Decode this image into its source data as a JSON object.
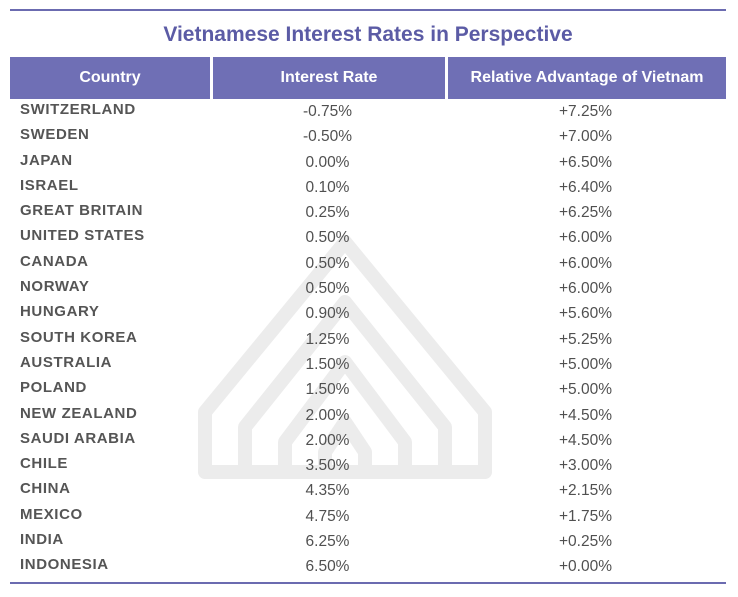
{
  "title": "Vietnamese Interest Rates in Perspective",
  "columns": {
    "country": "Country",
    "rate": "Interest Rate",
    "advantage": "Relative Advantage of Vietnam"
  },
  "rows": [
    {
      "country": "SWITZERLAND",
      "rate": "-0.75%",
      "advantage": "+7.25%"
    },
    {
      "country": "SWEDEN",
      "rate": "-0.50%",
      "advantage": "+7.00%"
    },
    {
      "country": "JAPAN",
      "rate": "0.00%",
      "advantage": "+6.50%"
    },
    {
      "country": "ISRAEL",
      "rate": "0.10%",
      "advantage": "+6.40%"
    },
    {
      "country": "GREAT BRITAIN",
      "rate": "0.25%",
      "advantage": "+6.25%"
    },
    {
      "country": "UNITED STATES",
      "rate": "0.50%",
      "advantage": "+6.00%"
    },
    {
      "country": "CANADA",
      "rate": "0.50%",
      "advantage": "+6.00%"
    },
    {
      "country": "NORWAY",
      "rate": "0.50%",
      "advantage": "+6.00%"
    },
    {
      "country": "HUNGARY",
      "rate": "0.90%",
      "advantage": "+5.60%"
    },
    {
      "country": "SOUTH KOREA",
      "rate": "1.25%",
      "advantage": "+5.25%"
    },
    {
      "country": "AUSTRALIA",
      "rate": "1.50%",
      "advantage": "+5.00%"
    },
    {
      "country": "POLAND",
      "rate": "1.50%",
      "advantage": "+5.00%"
    },
    {
      "country": "NEW ZEALAND",
      "rate": "2.00%",
      "advantage": "+4.50%"
    },
    {
      "country": "SAUDI ARABIA",
      "rate": "2.00%",
      "advantage": "+4.50%"
    },
    {
      "country": "CHILE",
      "rate": "3.50%",
      "advantage": "+3.00%"
    },
    {
      "country": "CHINA",
      "rate": "4.35%",
      "advantage": "+2.15%"
    },
    {
      "country": "MEXICO",
      "rate": "4.75%",
      "advantage": "+1.75%"
    },
    {
      "country": "INDIA",
      "rate": "6.25%",
      "advantage": "+0.25%"
    },
    {
      "country": "INDONESIA",
      "rate": "6.50%",
      "advantage": "+0.00%"
    }
  ],
  "colors": {
    "header_bg": "#6f6fb5",
    "title": "#5b5ba5",
    "rule": "#6b6bb0"
  },
  "watermark_icon": "arch-logo-icon"
}
